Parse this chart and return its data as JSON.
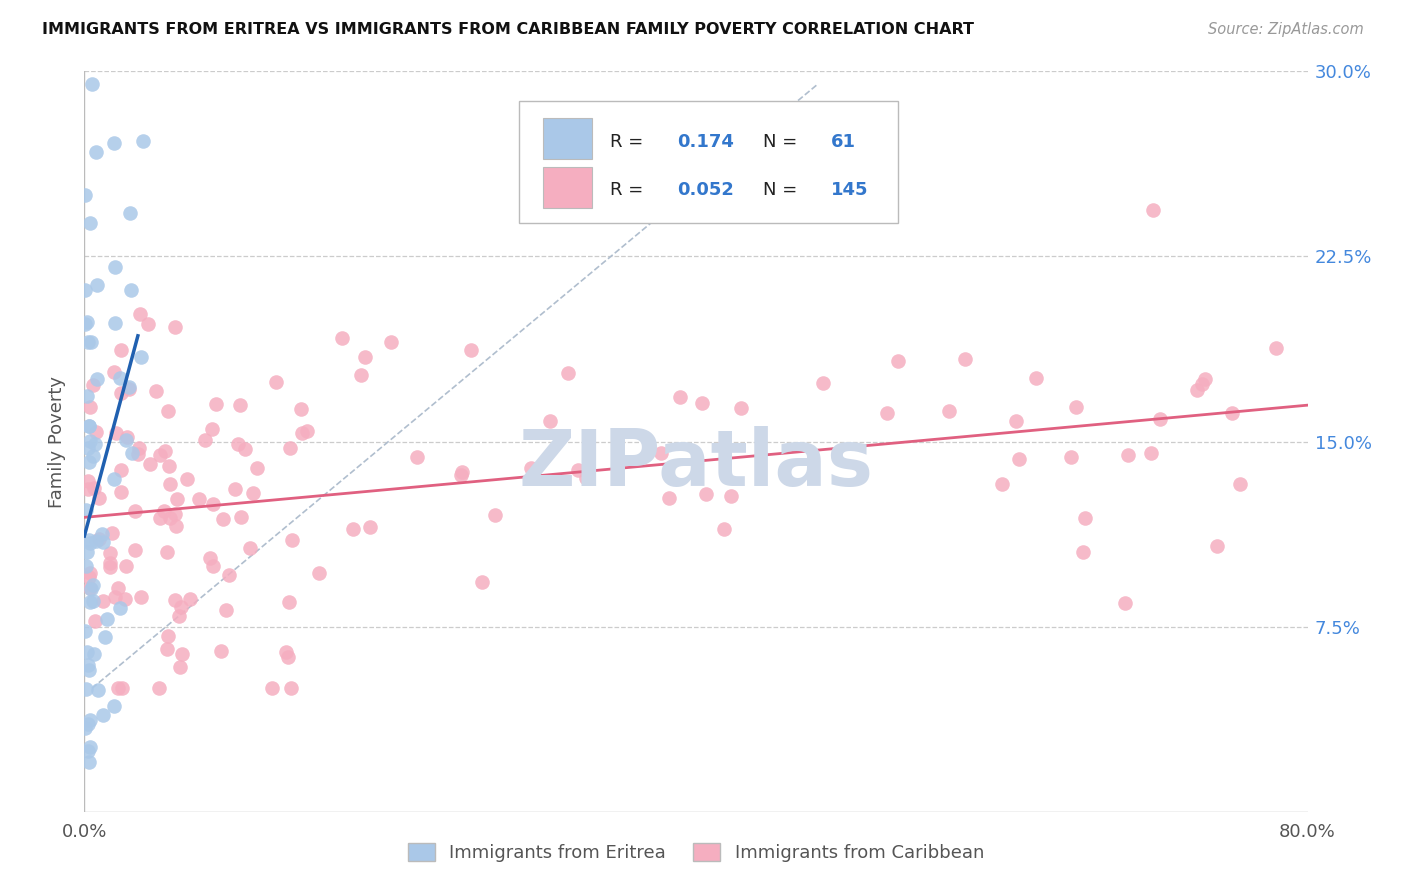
{
  "title": "IMMIGRANTS FROM ERITREA VS IMMIGRANTS FROM CARIBBEAN FAMILY POVERTY CORRELATION CHART",
  "source": "Source: ZipAtlas.com",
  "ylabel": "Family Poverty",
  "xmin": 0.0,
  "xmax": 0.8,
  "ymin": 0.0,
  "ymax": 0.3,
  "yticks": [
    0.0,
    0.075,
    0.15,
    0.225,
    0.3
  ],
  "ytick_labels": [
    "",
    "7.5%",
    "15.0%",
    "22.5%",
    "30.0%"
  ],
  "xtick_left": "0.0%",
  "xtick_right": "80.0%",
  "eritrea_R": 0.174,
  "eritrea_N": 61,
  "caribbean_R": 0.052,
  "caribbean_N": 145,
  "eritrea_color": "#aac8e8",
  "caribbean_color": "#f5aec0",
  "eritrea_line_color": "#2060b0",
  "caribbean_line_color": "#e06080",
  "ref_line_color": "#b0bece",
  "watermark_color": "#cdd8e8",
  "legend_box_color": "#cccccc",
  "text_color_dark": "#222222",
  "text_color_blue": "#3377cc",
  "text_color_gray": "#888888",
  "right_tick_color": "#4488dd"
}
